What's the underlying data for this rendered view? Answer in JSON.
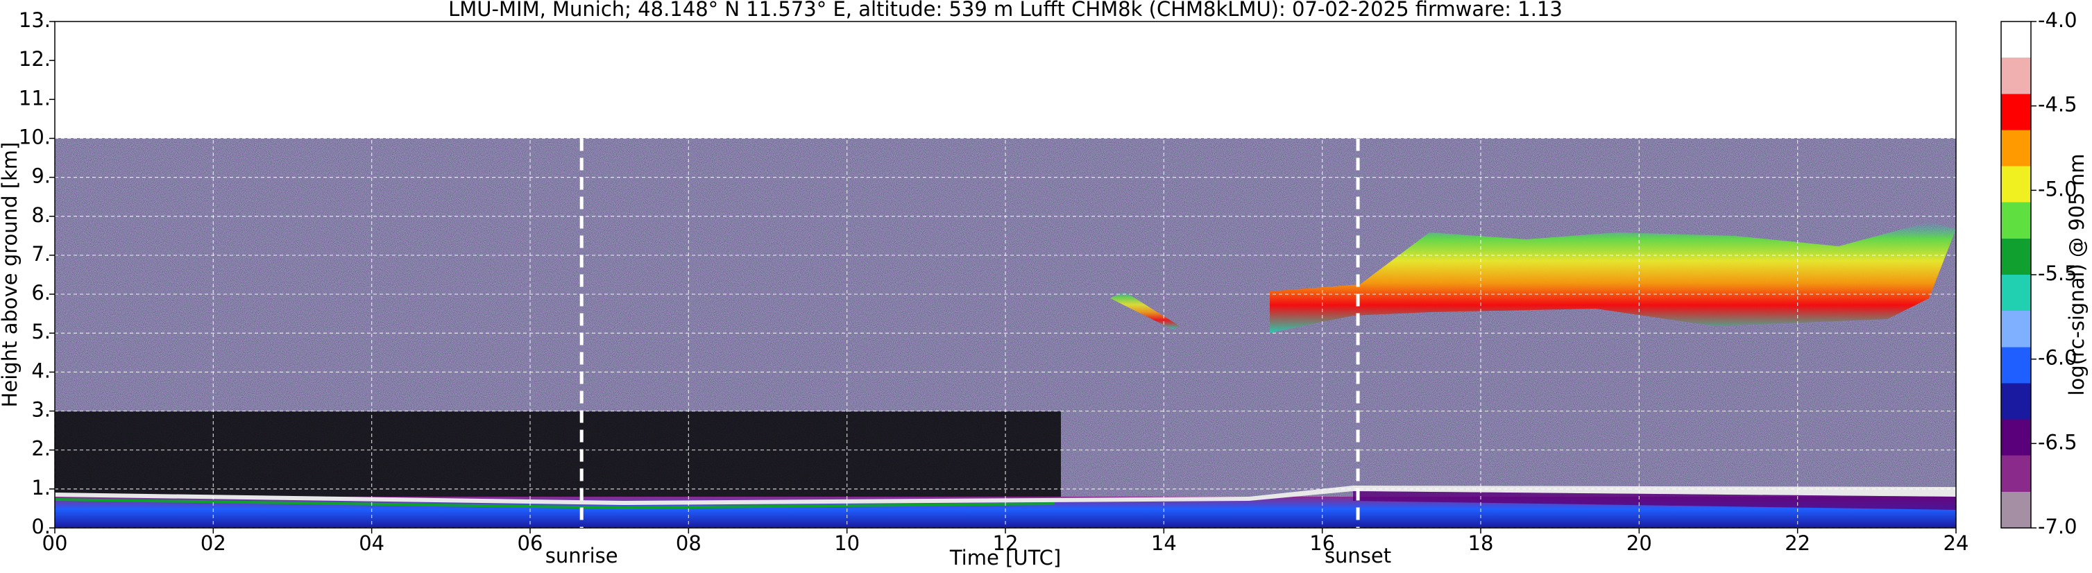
{
  "chart_data": {
    "type": "heatmap",
    "title": "LMU-MIM, Munich; 48.148° N 11.573° E, altitude: 539 m    Lufft CHM8k (CHM8kLMU): 07-02-2025    firmware: 1.13",
    "x_label": "Time [UTC]",
    "y_label": "Height above ground [km]",
    "colorbar_label": "log(rc-signal) @ 905 nm",
    "xlim": [
      0,
      24
    ],
    "xticks": [
      {
        "value": 0,
        "label": "00"
      },
      {
        "value": 2,
        "label": "02"
      },
      {
        "value": 4,
        "label": "04"
      },
      {
        "value": 6,
        "label": "06"
      },
      {
        "value": 8,
        "label": "08"
      },
      10,
      12,
      14,
      16,
      18,
      20,
      22,
      24
    ],
    "ylim": [
      0,
      13
    ],
    "yticks": [
      {
        "value": 0,
        "label": "0."
      },
      {
        "value": 1,
        "label": "1."
      },
      {
        "value": 2,
        "label": "2."
      },
      {
        "value": 3,
        "label": "3."
      },
      {
        "value": 4,
        "label": "4."
      },
      {
        "value": 5,
        "label": "5."
      },
      {
        "value": 6,
        "label": "6."
      },
      {
        "value": 7,
        "label": "7."
      },
      {
        "value": 8,
        "label": "8."
      },
      {
        "value": 9,
        "label": "9."
      },
      {
        "value": 10,
        "label": "10."
      },
      {
        "value": 11,
        "label": "11."
      },
      {
        "value": 12,
        "label": "12."
      },
      {
        "value": 13,
        "label": "13."
      }
    ],
    "clim": [
      -7,
      -4
    ],
    "cticks": [
      {
        "value": -7,
        "label": "-7.0"
      },
      {
        "value": -6.5,
        "label": "-6.5"
      },
      {
        "value": -6,
        "label": "-6.0"
      },
      {
        "value": -5.5,
        "label": "-5.5"
      },
      {
        "value": -5,
        "label": "-5.0"
      },
      {
        "value": -4.5,
        "label": "-4.5"
      },
      {
        "value": -4,
        "label": "-4.0"
      }
    ],
    "colormap": [
      "#a58fa5",
      "#8a2a8a",
      "#5a007a",
      "#1a1aa0",
      "#1f5fff",
      "#7fb0ff",
      "#20d0b0",
      "#10a030",
      "#60e040",
      "#f0f020",
      "#ff9a00",
      "#ff0000",
      "#f0b0b0",
      "#ffffff"
    ],
    "grid": true,
    "annotations": [
      {
        "text": "sunrise",
        "x": 6.65
      },
      {
        "text": "sunset",
        "x": 16.45
      }
    ]
  }
}
